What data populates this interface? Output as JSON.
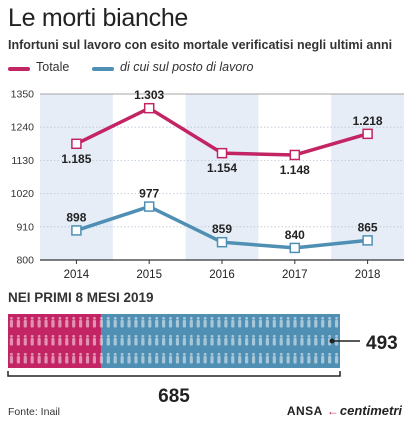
{
  "header": {
    "title": "Le morti bianche",
    "subtitle": "Infortuni sul lavoro con esito mortale verificatisi negli ultimi anni"
  },
  "colors": {
    "totale": "#c22464",
    "posto_di_lavoro": "#4f8fb3",
    "band": "#e6edf7",
    "axis": "#333333"
  },
  "chart_data": {
    "type": "line",
    "x": [
      "2014",
      "2015",
      "2016",
      "2017",
      "2018"
    ],
    "yticks": [
      "1350",
      "1240",
      "1130",
      "1020",
      "910",
      "800"
    ],
    "ylim": [
      800,
      1350
    ],
    "grid": true,
    "legend_position": "top-left",
    "series": [
      {
        "name": "Totale",
        "values": [
          1185,
          1303,
          1154,
          1148,
          1218
        ],
        "labels": [
          "1.185",
          "1.303",
          "1.154",
          "1.148",
          "1.218"
        ]
      },
      {
        "name": "di cui sul posto di lavoro",
        "values": [
          898,
          977,
          859,
          840,
          865
        ],
        "labels": [
          "898",
          "977",
          "859",
          "840",
          "865"
        ]
      }
    ]
  },
  "section": {
    "title": "NEI PRIMI 8 MESI 2019",
    "total": 685,
    "total_label": "685",
    "on_workplace": 493,
    "on_workplace_label": "493",
    "figure_icon": "person-icon"
  },
  "footer": {
    "source": "Fonte: Inail",
    "brand_ansa": "ANSA",
    "brand_arrow_icon": "arrow-icon",
    "brand_centimetri": "centimetri"
  }
}
